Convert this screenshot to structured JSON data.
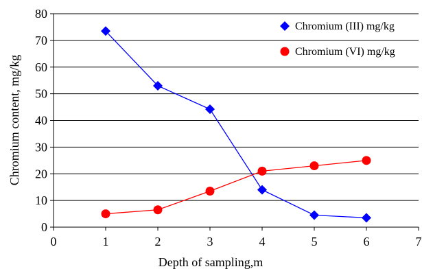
{
  "chart_data": {
    "type": "line",
    "xlabel": "Depth of sampling,m",
    "ylabel": "Chromium content, mg/kg",
    "xlim": [
      0,
      7
    ],
    "ylim": [
      0,
      80
    ],
    "x_ticks": [
      0,
      1,
      2,
      3,
      4,
      5,
      6,
      7
    ],
    "y_ticks": [
      0,
      10,
      20,
      30,
      40,
      50,
      60,
      70,
      80
    ],
    "grid": "horizontal",
    "legend_position": "top-right",
    "series": [
      {
        "name": "Chromium (III) mg/kg",
        "color": "#0000ff",
        "marker": "diamond",
        "x": [
          1,
          2,
          3,
          4,
          5,
          6
        ],
        "y": [
          73.5,
          53,
          44.2,
          14,
          4.5,
          3.5
        ]
      },
      {
        "name": "Chromium (VI) mg/kg",
        "color": "#ff0000",
        "marker": "circle",
        "x": [
          1,
          2,
          3,
          4,
          5,
          6
        ],
        "y": [
          5,
          6.5,
          13.5,
          21,
          23,
          25
        ]
      }
    ]
  }
}
